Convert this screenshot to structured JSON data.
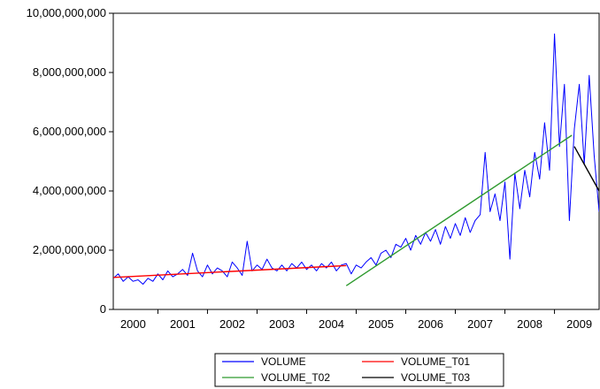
{
  "chart_data": {
    "type": "line",
    "title": "",
    "xlabel": "",
    "ylabel": "",
    "xlim": [
      1999.6,
      2009.4
    ],
    "ylim": [
      0,
      10000000000
    ],
    "x_ticks": [
      {
        "label": "2000",
        "value": 2000.0
      },
      {
        "label": "2001",
        "value": 2001.0
      },
      {
        "label": "2002",
        "value": 2002.0
      },
      {
        "label": "2003",
        "value": 2003.0
      },
      {
        "label": "2004",
        "value": 2004.0
      },
      {
        "label": "2005",
        "value": 2005.0
      },
      {
        "label": "2006",
        "value": 2006.0
      },
      {
        "label": "2007",
        "value": 2007.0
      },
      {
        "label": "2008",
        "value": 2008.0
      },
      {
        "label": "2009",
        "value": 2009.0
      }
    ],
    "y_ticks": [
      {
        "label": "0",
        "value": 0
      },
      {
        "label": "2,000,000,000",
        "value": 2000000000
      },
      {
        "label": "4,000,000,000",
        "value": 4000000000
      },
      {
        "label": "6,000,000,000",
        "value": 6000000000
      },
      {
        "label": "8,000,000,000",
        "value": 8000000000
      },
      {
        "label": "10,000,000,000",
        "value": 10000000000
      }
    ],
    "grid": false,
    "legend_position": "bottom",
    "series": [
      {
        "name": "VOLUME",
        "color": "#0000ff",
        "points": [
          [
            1999.6,
            1050000000.0
          ],
          [
            1999.7,
            1200000000.0
          ],
          [
            1999.8,
            950000000.0
          ],
          [
            1999.9,
            1100000000.0
          ],
          [
            2000.0,
            950000000.0
          ],
          [
            2000.1,
            1000000000.0
          ],
          [
            2000.2,
            850000000.0
          ],
          [
            2000.3,
            1050000000.0
          ],
          [
            2000.4,
            950000000.0
          ],
          [
            2000.5,
            1200000000.0
          ],
          [
            2000.6,
            1000000000.0
          ],
          [
            2000.7,
            1300000000.0
          ],
          [
            2000.8,
            1100000000.0
          ],
          [
            2000.9,
            1200000000.0
          ],
          [
            2001.0,
            1350000000.0
          ],
          [
            2001.1,
            1150000000.0
          ],
          [
            2001.2,
            1900000000.0
          ],
          [
            2001.3,
            1300000000.0
          ],
          [
            2001.4,
            1100000000.0
          ],
          [
            2001.5,
            1500000000.0
          ],
          [
            2001.6,
            1200000000.0
          ],
          [
            2001.7,
            1400000000.0
          ],
          [
            2001.8,
            1300000000.0
          ],
          [
            2001.9,
            1100000000.0
          ],
          [
            2002.0,
            1600000000.0
          ],
          [
            2002.1,
            1400000000.0
          ],
          [
            2002.2,
            1150000000.0
          ],
          [
            2002.3,
            2300000000.0
          ],
          [
            2002.4,
            1300000000.0
          ],
          [
            2002.5,
            1500000000.0
          ],
          [
            2002.6,
            1350000000.0
          ],
          [
            2002.7,
            1700000000.0
          ],
          [
            2002.8,
            1400000000.0
          ],
          [
            2002.9,
            1300000000.0
          ],
          [
            2003.0,
            1500000000.0
          ],
          [
            2003.1,
            1300000000.0
          ],
          [
            2003.2,
            1550000000.0
          ],
          [
            2003.3,
            1400000000.0
          ],
          [
            2003.4,
            1600000000.0
          ],
          [
            2003.5,
            1350000000.0
          ],
          [
            2003.6,
            1500000000.0
          ],
          [
            2003.7,
            1300000000.0
          ],
          [
            2003.8,
            1550000000.0
          ],
          [
            2003.9,
            1400000000.0
          ],
          [
            2004.0,
            1600000000.0
          ],
          [
            2004.1,
            1300000000.0
          ],
          [
            2004.2,
            1500000000.0
          ],
          [
            2004.3,
            1550000000.0
          ],
          [
            2004.4,
            1200000000.0
          ],
          [
            2004.5,
            1500000000.0
          ],
          [
            2004.6,
            1400000000.0
          ],
          [
            2004.7,
            1600000000.0
          ],
          [
            2004.8,
            1750000000.0
          ],
          [
            2004.9,
            1500000000.0
          ],
          [
            2005.0,
            1900000000.0
          ],
          [
            2005.1,
            2000000000.0
          ],
          [
            2005.2,
            1750000000.0
          ],
          [
            2005.3,
            2200000000.0
          ],
          [
            2005.4,
            2100000000.0
          ],
          [
            2005.5,
            2400000000.0
          ],
          [
            2005.6,
            2000000000.0
          ],
          [
            2005.7,
            2500000000.0
          ],
          [
            2005.8,
            2200000000.0
          ],
          [
            2005.9,
            2600000000.0
          ],
          [
            2006.0,
            2300000000.0
          ],
          [
            2006.1,
            2700000000.0
          ],
          [
            2006.2,
            2200000000.0
          ],
          [
            2006.3,
            2800000000.0
          ],
          [
            2006.4,
            2400000000.0
          ],
          [
            2006.5,
            2900000000.0
          ],
          [
            2006.6,
            2500000000.0
          ],
          [
            2006.7,
            3100000000.0
          ],
          [
            2006.8,
            2600000000.0
          ],
          [
            2006.9,
            3000000000.0
          ],
          [
            2007.0,
            3200000000.0
          ],
          [
            2007.1,
            5300000000.0
          ],
          [
            2007.2,
            3300000000.0
          ],
          [
            2007.3,
            3900000000.0
          ],
          [
            2007.4,
            3000000000.0
          ],
          [
            2007.5,
            4300000000.0
          ],
          [
            2007.6,
            1700000000.0
          ],
          [
            2007.7,
            4600000000.0
          ],
          [
            2007.8,
            3400000000.0
          ],
          [
            2007.9,
            4700000000.0
          ],
          [
            2008.0,
            3800000000.0
          ],
          [
            2008.1,
            5300000000.0
          ],
          [
            2008.2,
            4400000000.0
          ],
          [
            2008.3,
            6300000000.0
          ],
          [
            2008.4,
            4700000000.0
          ],
          [
            2008.5,
            9300000000.0
          ],
          [
            2008.6,
            5500000000.0
          ],
          [
            2008.7,
            7600000000.0
          ],
          [
            2008.8,
            3000000000.0
          ],
          [
            2008.9,
            6100000000.0
          ],
          [
            2009.0,
            7600000000.0
          ],
          [
            2009.1,
            4900000000.0
          ],
          [
            2009.2,
            7900000000.0
          ],
          [
            2009.3,
            5200000000.0
          ],
          [
            2009.4,
            3300000000.0
          ]
        ]
      },
      {
        "name": "VOLUME_T01",
        "color": "#ff0000",
        "points": [
          [
            1999.6,
            1080000000.0
          ],
          [
            2004.3,
            1480000000.0
          ]
        ]
      },
      {
        "name": "VOLUME_T02",
        "color": "#2e9a2e",
        "points": [
          [
            2004.3,
            800000000.0
          ],
          [
            2008.85,
            5880000000.0
          ]
        ]
      },
      {
        "name": "VOLUME_T03",
        "color": "#000000",
        "points": [
          [
            2008.9,
            5500000000.0
          ],
          [
            2009.4,
            4000000000.0
          ]
        ]
      }
    ]
  }
}
